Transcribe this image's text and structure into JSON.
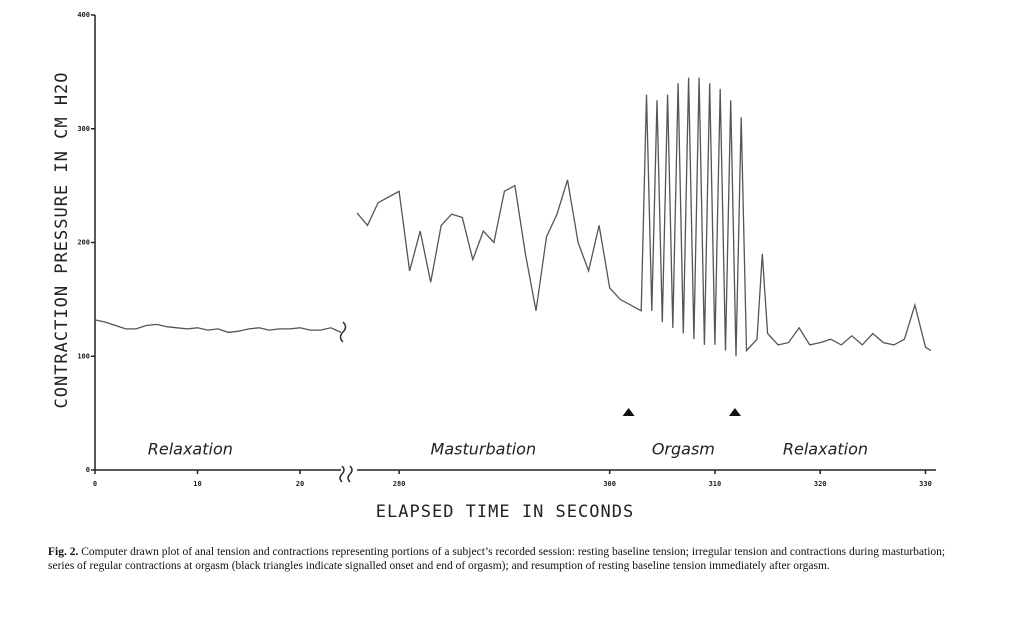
{
  "figure": {
    "ylabel": "CONTRACTION PRESSURE IN CM H2O",
    "xlabel": "ELAPSED TIME IN SECONDS",
    "caption": {
      "label": "Fig. 2.",
      "text": "Computer drawn plot of anal tension and contractions representing portions of a subject’s recorded session: resting baseline tension; irregular tension and contractions during masturbation; series of regular contractions at orgasm (black triangles indicate signalled onset and end of orgasm); and resumption of resting baseline tension immediately after orgasm."
    }
  },
  "chart_data": [
    {
      "type": "line",
      "xlim": [
        0,
        24
      ],
      "xticks": [
        0,
        10,
        20
      ],
      "ylim": [
        0,
        400
      ],
      "yticks": [
        0,
        100,
        200,
        300,
        400
      ],
      "color": "#555555",
      "x": [
        0,
        1,
        2,
        3,
        4,
        5,
        6,
        7,
        8,
        9,
        10,
        11,
        12,
        13,
        14,
        15,
        16,
        17,
        18,
        19,
        20,
        21,
        22,
        23,
        24
      ],
      "values": [
        132,
        130,
        127,
        124,
        124,
        127,
        128,
        126,
        125,
        124,
        125,
        123,
        124,
        121,
        122,
        124,
        125,
        123,
        124,
        124,
        125,
        123,
        123,
        125,
        121
      ],
      "annotations": [
        {
          "text": "Relaxation",
          "x": 9.3
        }
      ]
    },
    {
      "type": "line",
      "xlim": [
        276,
        331
      ],
      "xticks": [
        280,
        300,
        310,
        320,
        330
      ],
      "color": "#555555",
      "x": [
        276,
        277,
        278,
        279,
        280,
        281,
        282,
        283,
        284,
        285,
        286,
        287,
        288,
        289,
        290,
        291,
        292,
        293,
        294,
        295,
        296,
        297,
        298,
        299,
        300,
        301,
        302,
        303,
        303.5,
        304,
        304.5,
        305,
        305.5,
        306,
        306.5,
        307,
        307.5,
        308,
        308.5,
        309,
        309.5,
        310,
        310.5,
        311,
        311.5,
        312,
        312.5,
        313,
        314,
        314.5,
        315,
        316,
        317,
        318,
        319,
        320,
        321,
        322,
        323,
        324,
        325,
        326,
        327,
        328,
        329,
        330,
        330.5
      ],
      "values": [
        226,
        215,
        235,
        240,
        245,
        175,
        210,
        165,
        215,
        225,
        222,
        185,
        210,
        200,
        245,
        250,
        190,
        140,
        205,
        225,
        255,
        200,
        175,
        215,
        160,
        150,
        145,
        140,
        330,
        140,
        325,
        130,
        330,
        125,
        340,
        120,
        345,
        115,
        345,
        110,
        340,
        110,
        335,
        105,
        325,
        100,
        310,
        105,
        115,
        190,
        120,
        110,
        112,
        125,
        110,
        112,
        115,
        110,
        118,
        110,
        120,
        112,
        110,
        115,
        145,
        108,
        105
      ],
      "annotations": [
        {
          "text": "Masturbation",
          "x": 288
        },
        {
          "text": "Orgasm",
          "x": 307
        },
        {
          "text": "Relaxation",
          "x": 320.5
        }
      ],
      "markers": [
        301.8,
        311.9
      ]
    }
  ]
}
